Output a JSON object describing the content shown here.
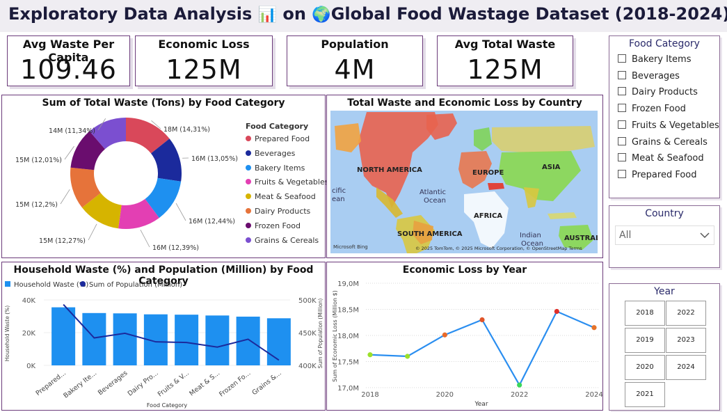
{
  "header": {
    "title_prefix": "Exploratory Data Analysis",
    "chart_emoji": "📊",
    "on": "on",
    "globe_emoji": "🌍",
    "title_main": "Global Food Wastage Dataset (2018-2024)",
    "plate_emoji": "🍽️"
  },
  "kpis": [
    {
      "label": "Avg Waste Per Capita",
      "value": "109.46"
    },
    {
      "label": "Economic Loss",
      "value": "125M"
    },
    {
      "label": "Population",
      "value": "4M"
    },
    {
      "label": "Avg Total Waste",
      "value": "125M"
    }
  ],
  "donut": {
    "title": "Sum of Total Waste (Tons) by Food Category",
    "legend_title": "Food Category",
    "slices": [
      {
        "name": "Prepared Food",
        "label": "18M (14,31%)",
        "pct": 14.31,
        "color": "#d9485a"
      },
      {
        "name": "Beverages",
        "label": "16M (13,05%)",
        "pct": 13.05,
        "color": "#1b2a9c"
      },
      {
        "name": "Bakery Items",
        "label": "16M (12,44%)",
        "pct": 12.44,
        "color": "#1e90f0"
      },
      {
        "name": "Fruits & Vegetables",
        "label": "16M (12,39%)",
        "pct": 12.39,
        "color": "#e33fb3"
      },
      {
        "name": "Meat & Seafood",
        "label": "15M (12,27%)",
        "pct": 12.27,
        "color": "#d6b400"
      },
      {
        "name": "Dairy Products",
        "label": "15M (12,2%)",
        "pct": 12.2,
        "color": "#e6733a"
      },
      {
        "name": "Frozen Food",
        "label": "15M (12,01%)",
        "pct": 12.01,
        "color": "#6a0d6e"
      },
      {
        "name": "Grains & Cereals",
        "label": "14M (11,34%)",
        "pct": 11.34,
        "color": "#7b4fd0"
      }
    ]
  },
  "map": {
    "title": "Total Waste and Economic Loss by Country",
    "labels": {
      "north_america": "NORTH AMERICA",
      "europe": "EUROPE",
      "asia": "ASIA",
      "atlantic": "Atlantic",
      "ocean1": "Ocean",
      "africa": "AFRICA",
      "south_america": "SOUTH AMERICA",
      "indian": "Indian",
      "ocean2": "Ocean",
      "australia": "AUSTRALIA",
      "pacific": "cific",
      "ocean3": "ean"
    },
    "bing": "Microsoft Bing",
    "copyright": "© 2025 TomTom, © 2025 Microsoft Corporation, © OpenStreetMap  Terms"
  },
  "combo": {
    "title": "Household Waste (%) and Population (Million) by Food Category",
    "legend": [
      {
        "name": "Household Waste (%)",
        "color": "#1e90f0"
      },
      {
        "name": "Sum of Population (Million)",
        "color": "#1b2a9c"
      }
    ],
    "ylabel_left": "Household Waste (%)",
    "ylabel_right": "Sum of Population (Million)",
    "xlabel": "Food Category",
    "left_ticks": [
      "0K",
      "20K",
      "40K"
    ],
    "right_ticks": [
      "400K",
      "450K",
      "500K"
    ]
  },
  "chart_data": [
    {
      "type": "pie",
      "title": "Sum of Total Waste (Tons) by Food Category",
      "categories": [
        "Prepared Food",
        "Beverages",
        "Bakery Items",
        "Fruits & Vegetables",
        "Meat & Seafood",
        "Dairy Products",
        "Frozen Food",
        "Grains & Cereals"
      ],
      "values": [
        18,
        16,
        16,
        16,
        15,
        15,
        15,
        14
      ],
      "percent": [
        14.31,
        13.05,
        12.44,
        12.39,
        12.27,
        12.2,
        12.01,
        11.34
      ]
    },
    {
      "type": "bar",
      "title": "Household Waste (%) and Population (Million) by Food Category",
      "categories": [
        "Prepared...",
        "Bakery Ite...",
        "Beverages",
        "Dairy Pro...",
        "Fruits & V...",
        "Meat & S...",
        "Frozen Fo...",
        "Grains &..."
      ],
      "series": [
        {
          "name": "Household Waste (%)",
          "values": [
            35500,
            32000,
            31800,
            31200,
            31000,
            30500,
            29800,
            28800
          ]
        },
        {
          "name": "Sum of Population (Million)",
          "values": [
            493000,
            442000,
            449000,
            436000,
            435000,
            428000,
            440000,
            408000
          ]
        }
      ],
      "xlabel": "Food Category",
      "ylabel": "Household Waste (%)",
      "ylim": [
        0,
        40000
      ],
      "y2label": "Sum of Population (Million)",
      "y2lim": [
        400000,
        500000
      ]
    },
    {
      "type": "line",
      "title": "Economic Loss by Year",
      "x": [
        2018,
        2019,
        2020,
        2021,
        2022,
        2023,
        2024
      ],
      "values": [
        17.63,
        17.6,
        18.01,
        18.3,
        17.05,
        18.46,
        18.15
      ],
      "xlabel": "Year",
      "ylabel": "Sum of Economic Loss (Million $)",
      "ylim": [
        17.0,
        19.0
      ],
      "yticks": [
        "17,0M",
        "17,5M",
        "18,0M",
        "18,5M",
        "19,0M"
      ],
      "xticks": [
        "2018",
        "2020",
        "2022",
        "2024"
      ],
      "point_colors": [
        "#9be02a",
        "#9be02a",
        "#e86a2a",
        "#e0552a",
        "#3ad65a",
        "#e0302a",
        "#e6732a"
      ]
    }
  ],
  "slicers": {
    "category": {
      "title": "Food Category",
      "items": [
        "Bakery Items",
        "Beverages",
        "Dairy Products",
        "Frozen Food",
        "Fruits & Vegetables",
        "Grains & Cereals",
        "Meat & Seafood",
        "Prepared Food"
      ]
    },
    "country": {
      "title": "Country",
      "value": "All"
    },
    "year": {
      "title": "Year",
      "options": [
        "2018",
        "2022",
        "2019",
        "2023",
        "2020",
        "2024",
        "2021"
      ]
    }
  }
}
